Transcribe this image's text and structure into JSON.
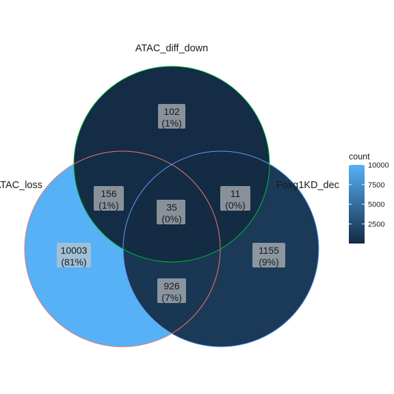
{
  "chart_data": {
    "type": "venn",
    "sets": [
      {
        "key": "A",
        "name": "ATAC_loss",
        "border": "#F8766D"
      },
      {
        "key": "B",
        "name": "ATAC_diff_down",
        "border": "#00BA38"
      },
      {
        "key": "C",
        "name": "Foxg1KD_dec",
        "border": "#619CFF"
      }
    ],
    "regions": [
      {
        "id": "A_only",
        "count": "10003",
        "percent": "(81%)",
        "value": 10003
      },
      {
        "id": "B_only",
        "count": "102",
        "percent": "(1%)",
        "value": 102
      },
      {
        "id": "C_only",
        "count": "1155",
        "percent": "(9%)",
        "value": 1155
      },
      {
        "id": "AB",
        "count": "156",
        "percent": "(1%)",
        "value": 156
      },
      {
        "id": "BC",
        "count": "11",
        "percent": "(0%)",
        "value": 11
      },
      {
        "id": "AC",
        "count": "926",
        "percent": "(7%)",
        "value": 926
      },
      {
        "id": "ABC",
        "count": "35",
        "percent": "(0%)",
        "value": 35
      }
    ],
    "legend": {
      "title": "count",
      "ticks": [
        "10000",
        "7500",
        "5000",
        "2500"
      ],
      "tick_values": [
        10000,
        7500,
        5000,
        2500
      ],
      "min": 11,
      "max": 10003,
      "low_color": "#132B43",
      "high_color": "#56B1F7",
      "placement": "right"
    }
  }
}
